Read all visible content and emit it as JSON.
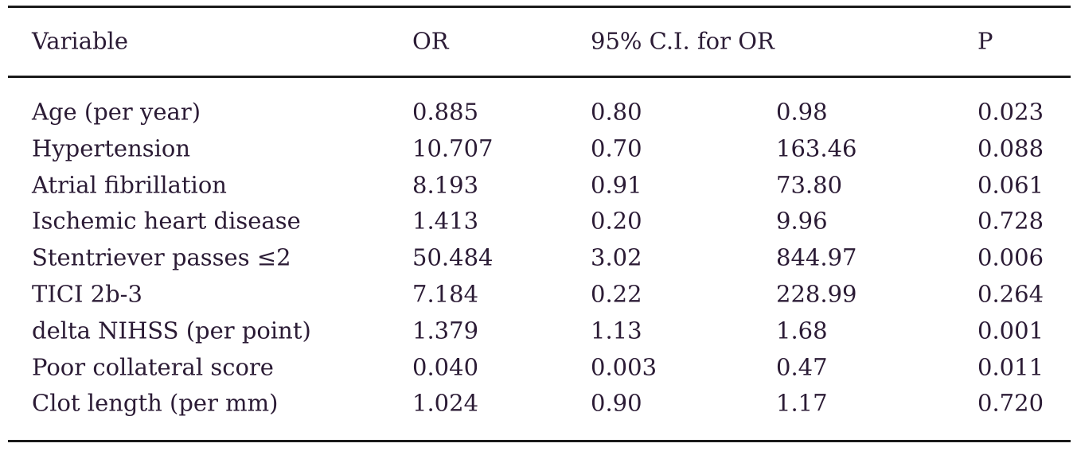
{
  "table": {
    "header": [
      "Variable",
      "OR",
      "95% C.I. for OR",
      "P"
    ],
    "rows": [
      [
        "Age (per year)",
        "0.885",
        "0.80",
        "0.98",
        "0.023"
      ],
      [
        "Hypertension",
        "10.707",
        "0.70",
        "163.46",
        "0.088"
      ],
      [
        "Atrial fibrillation",
        "8.193",
        "0.91",
        "73.80",
        "0.061"
      ],
      [
        "Ischemic heart disease",
        "1.413",
        "0.20",
        "9.96",
        "0.728"
      ],
      [
        "Stentriever passes ≤2",
        "50.484",
        "3.02",
        "844.97",
        "0.006"
      ],
      [
        "TICI 2b-3",
        "7.184",
        "0.22",
        "228.99",
        "0.264"
      ],
      [
        "delta NIHSS (per point)",
        "1.379",
        "1.13",
        "1.68",
        "0.001"
      ],
      [
        "Poor collateral score",
        "0.040",
        "0.003",
        "0.47",
        "0.011"
      ],
      [
        "Clot length (per mm)",
        "1.024",
        "0.90",
        "1.17",
        "0.720"
      ]
    ]
  }
}
